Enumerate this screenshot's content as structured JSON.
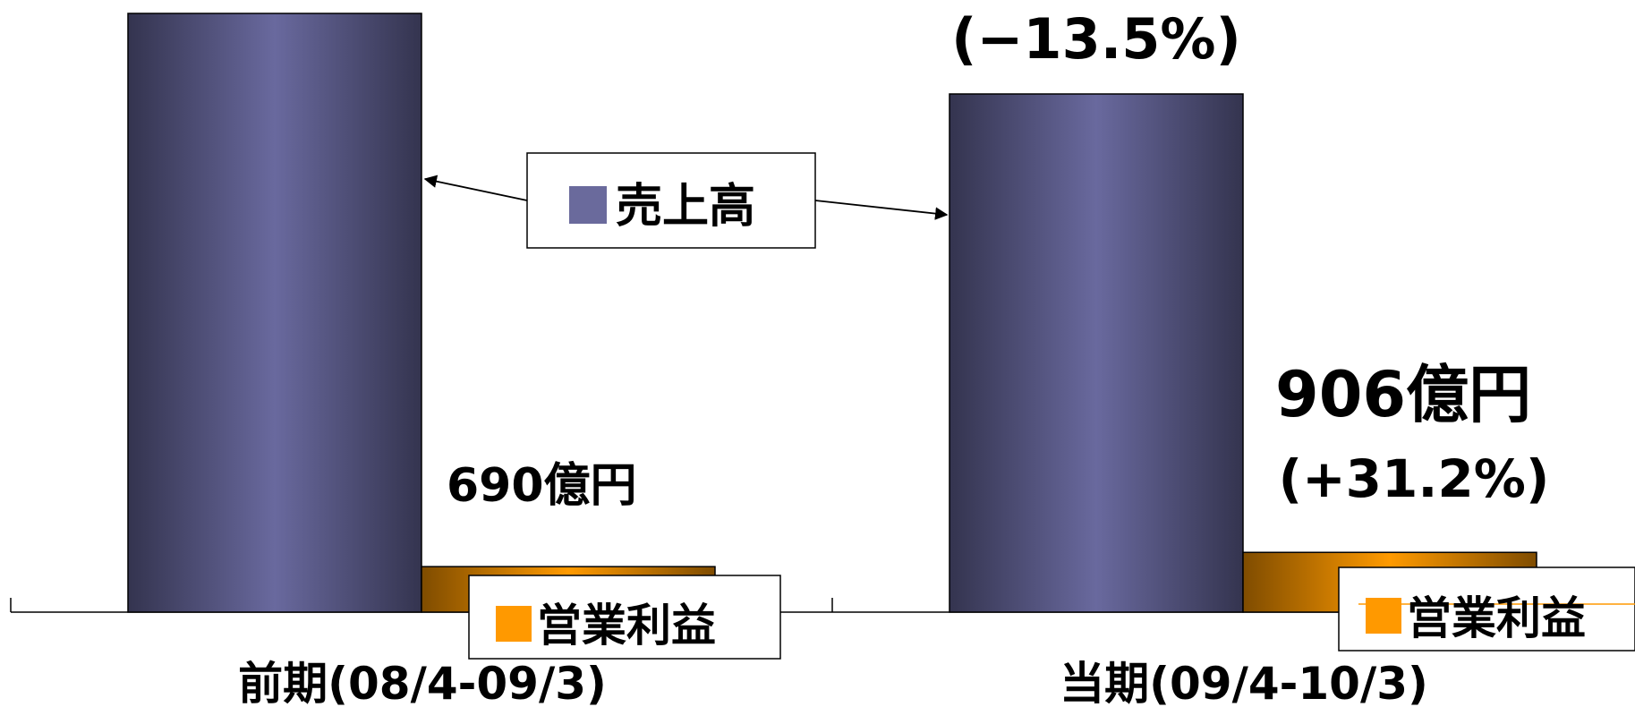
{
  "chart_data": {
    "type": "bar",
    "categories": [
      "前期(08/4-09/3)",
      "当期(09/4-10/3)"
    ],
    "series": [
      {
        "name": "売上高",
        "values": [
          null,
          null
        ],
        "color": "#6a6a9c"
      },
      {
        "name": "営業利益",
        "values": [
          690,
          906
        ],
        "color": "#ff9900"
      }
    ],
    "units": "億円",
    "data_labels": {
      "sales_change_current": "(−13.5%)",
      "profit_prev": "690億円",
      "profit_current": "906億円",
      "profit_change_current": "(+31.2%)"
    },
    "legend_placement": "inside, callouts pointing to bars",
    "grid": false
  }
}
